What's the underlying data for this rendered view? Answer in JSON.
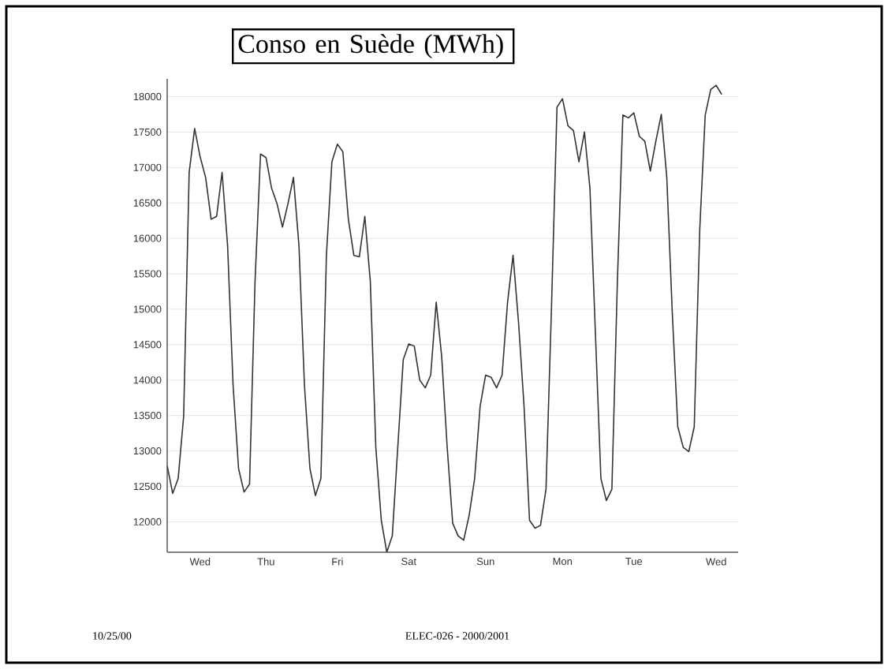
{
  "chart_data": {
    "type": "line",
    "title": "Conso en Suède (MWh)",
    "annotations": [
      "10/25/00",
      "ELEC-026 - 2000/2001"
    ],
    "categories": [
      null,
      null,
      null,
      null,
      null,
      null,
      "Wed",
      null,
      null,
      null,
      null,
      null,
      null,
      null,
      null,
      null,
      null,
      null,
      "Thu",
      null,
      null,
      null,
      null,
      null,
      null,
      null,
      null,
      null,
      null,
      null,
      null,
      "Fri",
      null,
      null,
      null,
      null,
      null,
      null,
      null,
      null,
      null,
      null,
      null,
      null,
      "Sat",
      null,
      null,
      null,
      null,
      null,
      null,
      null,
      null,
      null,
      null,
      null,
      null,
      null,
      "Sun",
      null,
      null,
      null,
      null,
      null,
      null,
      null,
      null,
      null,
      null,
      null,
      null,
      null,
      "Mon",
      null,
      null,
      null,
      null,
      null,
      null,
      null,
      null,
      null,
      null,
      null,
      null,
      "Tue",
      null,
      null,
      null,
      null,
      null,
      null,
      null,
      null,
      null,
      null,
      null,
      null,
      null,
      null,
      "Wed",
      null
    ],
    "series": [
      {
        "color": "#333333",
        "values": [
          12790,
          12400,
          12610,
          13490,
          16930,
          17550,
          17150,
          16860,
          16270,
          16310,
          16930,
          15900,
          13930,
          12750,
          12420,
          12530,
          15390,
          17190,
          17140,
          16710,
          16490,
          16160,
          16490,
          16860,
          15900,
          13930,
          12750,
          12370,
          12610,
          15760,
          17080,
          17330,
          17220,
          16270,
          15760,
          15740,
          16310,
          15390,
          13050,
          12020,
          11570,
          11800,
          13050,
          14290,
          14510,
          14480,
          14000,
          13890,
          14070,
          15100,
          14330,
          13050,
          11980,
          11800,
          11740,
          12090,
          12610,
          13630,
          14070,
          14040,
          13890,
          14070,
          15100,
          15760,
          14810,
          13630,
          12020,
          11910,
          11950,
          12460,
          15030,
          17850,
          17970,
          17590,
          17520,
          17080,
          17500,
          16710,
          14660,
          12610,
          12300,
          12460,
          15390,
          17740,
          17700,
          17770,
          17440,
          17370,
          16950,
          17370,
          17750,
          16860,
          14950,
          13340,
          13050,
          12990,
          13340,
          16120,
          17740,
          18100,
          18160,
          18030
        ]
      }
    ],
    "ylim": [
      11570,
      18250
    ],
    "yticks": [
      12000,
      12500,
      13000,
      13500,
      14000,
      14500,
      15000,
      15500,
      16000,
      16500,
      17000,
      17500,
      18000
    ],
    "grid": "y",
    "marker": "none",
    "line_style": "solid"
  }
}
